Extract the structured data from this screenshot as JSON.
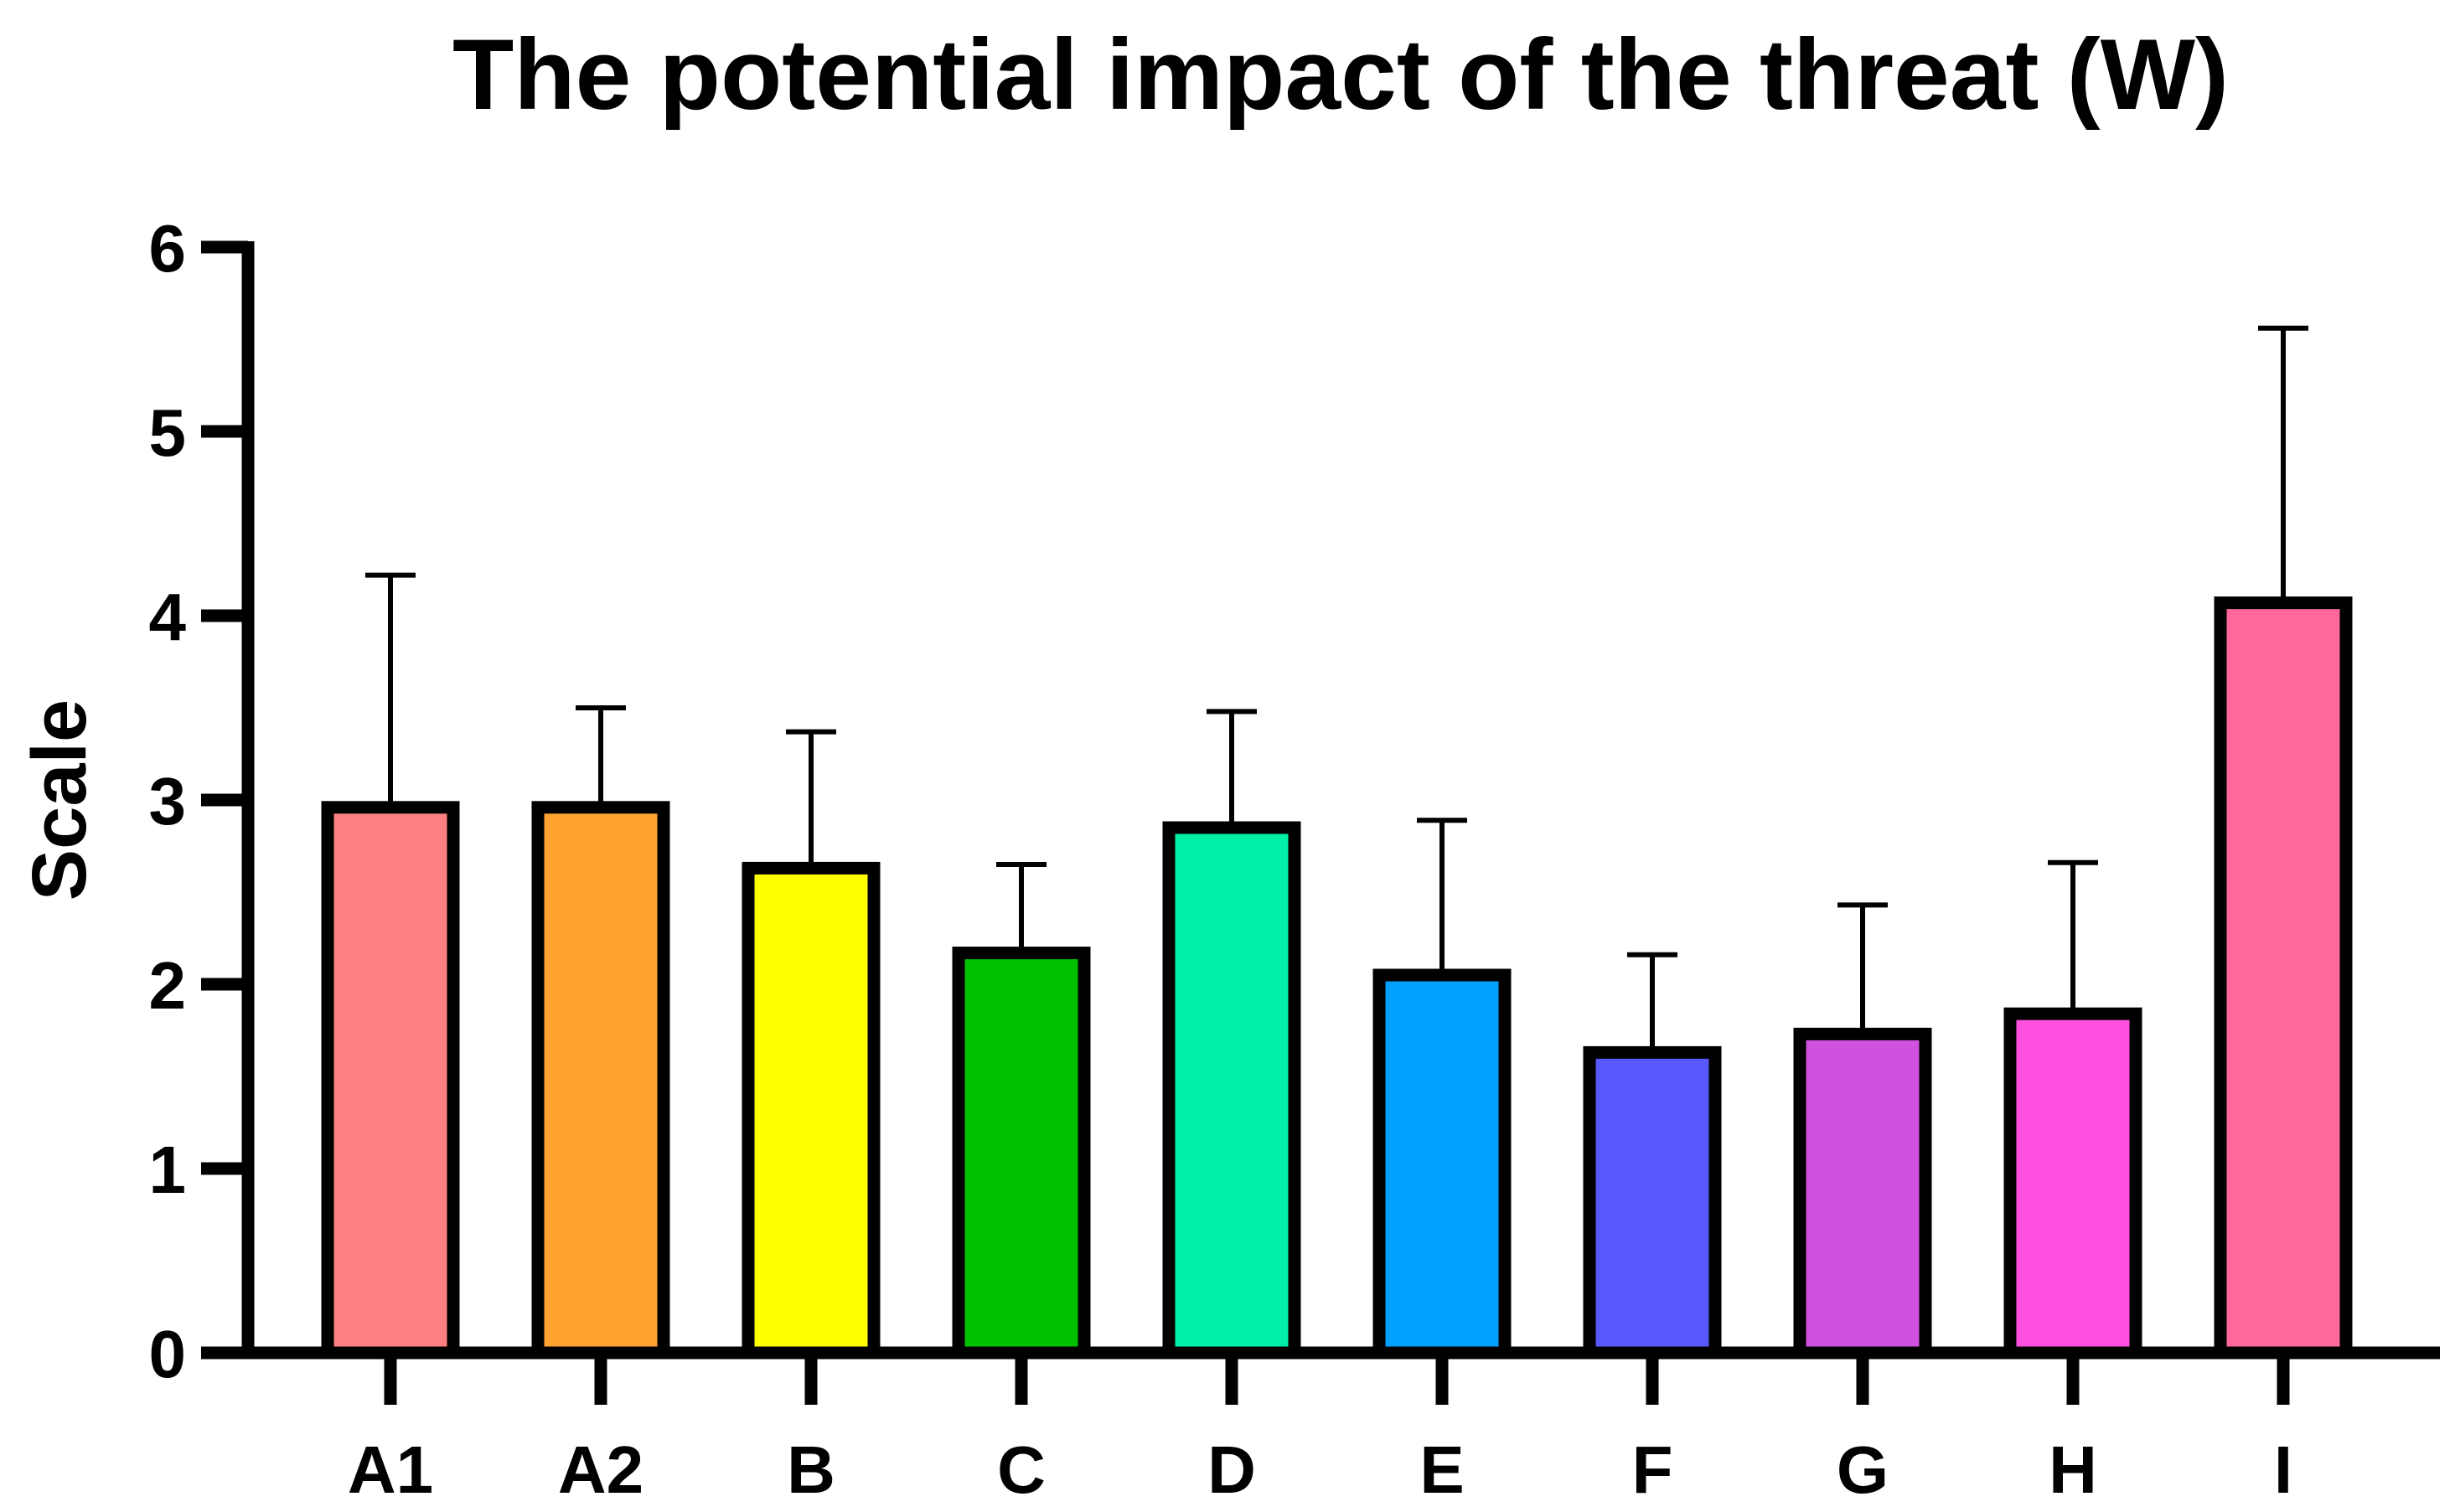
{
  "chart_data": {
    "type": "bar",
    "title": "The potential impact of the threat  (W)",
    "xlabel": "",
    "ylabel": "Scale",
    "ylim": [
      0,
      6
    ],
    "yticks": [
      0,
      1,
      2,
      3,
      4,
      5,
      6
    ],
    "grid": false,
    "legend": "none",
    "categories": [
      "A1",
      "A2",
      "B",
      "C",
      "D",
      "E",
      "F",
      "G",
      "H",
      "I"
    ],
    "values": [
      2.96,
      2.96,
      2.63,
      2.17,
      2.85,
      2.05,
      1.63,
      1.73,
      1.84,
      4.07
    ],
    "error_upper": [
      4.22,
      3.5,
      3.37,
      2.65,
      3.48,
      2.89,
      2.16,
      2.43,
      2.66,
      5.56
    ],
    "colors": [
      "#FF8080",
      "#FFA230",
      "#FFFF00",
      "#00C000",
      "#00F0A8",
      "#00A0FF",
      "#5858FF",
      "#D050E0",
      "#FF50E0",
      "#FF6898"
    ],
    "bar_outline_color": "#000000"
  }
}
